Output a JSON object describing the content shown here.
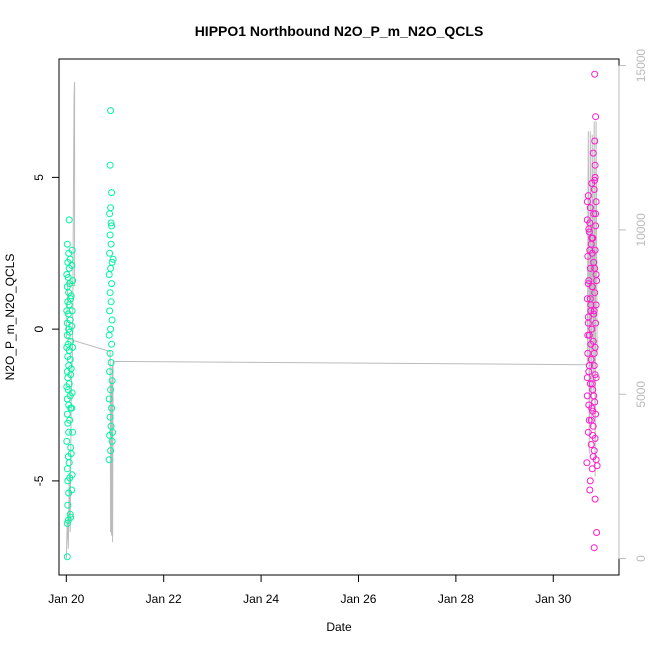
{
  "chart_data": {
    "type": "scatter",
    "title": "HIPPO1 Northbound N2O_P_m_N2O_QCLS",
    "xlabel": "Date",
    "ylabel": "N2O_P_m_N2O_QCLS",
    "xlim": [
      19.85,
      31.35
    ],
    "ylim": [
      -8.1,
      8.9
    ],
    "x_ticks": [
      20,
      22,
      24,
      26,
      28,
      30
    ],
    "x_tick_labels": [
      "Jan 20",
      "Jan 22",
      "Jan 24",
      "Jan 26",
      "Jan 28",
      "Jan 30"
    ],
    "y_ticks": [
      -5,
      0,
      5
    ],
    "y_tick_labels": [
      "-5",
      "0",
      "5"
    ],
    "y2_lim": [
      -500,
      15200
    ],
    "y2_ticks": [
      0,
      5000,
      10000,
      15000
    ],
    "y2_tick_labels": [
      "0",
      "5000",
      "10000",
      "15000"
    ],
    "grid": false,
    "colors": {
      "early_points": "#00f5a0",
      "late_points": "#ff1ad0",
      "altitude_line": "#bbbbbb",
      "axis": "#000000",
      "right_axis": "#bbbbbb"
    },
    "series": [
      {
        "values": [
          [
            20.02,
            -7.5
          ],
          [
            20.02,
            -6.4
          ],
          [
            20.08,
            -6.1
          ],
          [
            20.03,
            -5.8
          ],
          [
            20.09,
            -6.2
          ],
          [
            20.05,
            -5.4
          ],
          [
            20.03,
            -5.0
          ],
          [
            20.07,
            -4.9
          ],
          [
            20.02,
            -4.6
          ],
          [
            20.06,
            -4.4
          ],
          [
            20.04,
            -4.2
          ],
          [
            20.09,
            -3.9
          ],
          [
            20.01,
            -3.7
          ],
          [
            20.05,
            -3.4
          ],
          [
            20.03,
            -3.1
          ],
          [
            20.07,
            -3.0
          ],
          [
            20.02,
            -2.8
          ],
          [
            20.09,
            -2.6
          ],
          [
            20.05,
            -2.5
          ],
          [
            20.02,
            -2.3
          ],
          [
            20.08,
            -2.2
          ],
          [
            20.04,
            -2.0
          ],
          [
            20.01,
            -1.9
          ],
          [
            20.06,
            -1.8
          ],
          [
            20.03,
            -1.6
          ],
          [
            20.09,
            -1.5
          ],
          [
            20.02,
            -1.4
          ],
          [
            20.05,
            -1.2
          ],
          [
            20.08,
            -1.0
          ],
          [
            20.03,
            -0.9
          ],
          [
            20.06,
            -0.7
          ],
          [
            20.01,
            -0.6
          ],
          [
            20.04,
            -0.5
          ],
          [
            20.09,
            -0.4
          ],
          [
            20.02,
            -0.2
          ],
          [
            20.07,
            -0.1
          ],
          [
            20.05,
            0.0
          ],
          [
            20.02,
            0.2
          ],
          [
            20.08,
            0.3
          ],
          [
            20.04,
            0.5
          ],
          [
            20.01,
            0.6
          ],
          [
            20.06,
            0.8
          ],
          [
            20.03,
            0.9
          ],
          [
            20.09,
            1.0
          ],
          [
            20.05,
            1.2
          ],
          [
            20.02,
            1.4
          ],
          [
            20.07,
            1.5
          ],
          [
            20.04,
            1.7
          ],
          [
            20.01,
            1.8
          ],
          [
            20.06,
            2.0
          ],
          [
            20.03,
            2.2
          ],
          [
            20.08,
            2.3
          ],
          [
            20.05,
            2.5
          ],
          [
            20.02,
            2.8
          ],
          [
            20.12,
            2.6
          ],
          [
            20.11,
            2.1
          ],
          [
            20.13,
            1.6
          ],
          [
            20.1,
            1.1
          ],
          [
            20.12,
            0.6
          ],
          [
            20.11,
            0.1
          ],
          [
            20.13,
            -0.6
          ],
          [
            20.1,
            -1.3
          ],
          [
            20.12,
            -2.1
          ],
          [
            20.11,
            -2.6
          ],
          [
            20.13,
            -3.4
          ],
          [
            20.1,
            -4.1
          ],
          [
            20.12,
            -4.8
          ],
          [
            20.11,
            -5.3
          ],
          [
            20.06,
            3.6
          ],
          [
            20.04,
            -6.3
          ],
          [
            20.91,
            7.2
          ],
          [
            20.9,
            5.4
          ],
          [
            20.93,
            4.5
          ],
          [
            20.91,
            4.0
          ],
          [
            20.89,
            3.8
          ],
          [
            20.93,
            3.4
          ],
          [
            20.9,
            3.1
          ],
          [
            20.92,
            2.8
          ],
          [
            20.89,
            2.5
          ],
          [
            20.94,
            2.2
          ],
          [
            20.91,
            2.0
          ],
          [
            20.88,
            1.8
          ],
          [
            20.93,
            1.5
          ],
          [
            20.9,
            1.2
          ],
          [
            20.92,
            0.9
          ],
          [
            20.89,
            0.6
          ],
          [
            20.94,
            0.3
          ],
          [
            20.91,
            0.0
          ],
          [
            20.88,
            -0.2
          ],
          [
            20.93,
            -0.5
          ],
          [
            20.9,
            -0.8
          ],
          [
            20.92,
            -1.1
          ],
          [
            20.89,
            -1.4
          ],
          [
            20.94,
            -1.7
          ],
          [
            20.91,
            -2.0
          ],
          [
            20.88,
            -2.3
          ],
          [
            20.93,
            -2.6
          ],
          [
            20.9,
            -2.9
          ],
          [
            20.92,
            -3.2
          ],
          [
            20.89,
            -3.5
          ],
          [
            20.94,
            -3.7
          ],
          [
            20.91,
            -4.0
          ],
          [
            20.88,
            -4.3
          ],
          [
            20.95,
            -3.4
          ],
          [
            20.92,
            3.5
          ],
          [
            20.96,
            2.3
          ]
        ]
      },
      {
        "values": [
          [
            30.85,
            8.4
          ],
          [
            30.87,
            7.0
          ],
          [
            30.85,
            6.2
          ],
          [
            30.82,
            5.8
          ],
          [
            30.86,
            5.0
          ],
          [
            30.79,
            4.8
          ],
          [
            30.84,
            4.6
          ],
          [
            30.72,
            4.4
          ],
          [
            30.88,
            4.2
          ],
          [
            30.76,
            4.0
          ],
          [
            30.83,
            3.8
          ],
          [
            30.7,
            3.6
          ],
          [
            30.87,
            3.4
          ],
          [
            30.74,
            3.2
          ],
          [
            30.81,
            3.0
          ],
          [
            30.78,
            2.8
          ],
          [
            30.86,
            2.6
          ],
          [
            30.71,
            2.4
          ],
          [
            30.83,
            2.2
          ],
          [
            30.76,
            2.0
          ],
          [
            30.88,
            1.8
          ],
          [
            30.73,
            1.6
          ],
          [
            30.8,
            1.4
          ],
          [
            30.85,
            1.2
          ],
          [
            30.7,
            1.0
          ],
          [
            30.77,
            0.8
          ],
          [
            30.84,
            0.6
          ],
          [
            30.72,
            0.4
          ],
          [
            30.87,
            0.2
          ],
          [
            30.79,
            0.0
          ],
          [
            30.74,
            -0.2
          ],
          [
            30.82,
            -0.4
          ],
          [
            30.86,
            -0.6
          ],
          [
            30.71,
            -0.8
          ],
          [
            30.78,
            -1.0
          ],
          [
            30.84,
            -1.2
          ],
          [
            30.73,
            -1.4
          ],
          [
            30.88,
            -1.6
          ],
          [
            30.76,
            -1.8
          ],
          [
            30.81,
            -2.0
          ],
          [
            30.7,
            -2.2
          ],
          [
            30.85,
            -2.4
          ],
          [
            30.79,
            -2.6
          ],
          [
            30.87,
            -2.8
          ],
          [
            30.74,
            -3.0
          ],
          [
            30.82,
            -3.2
          ],
          [
            30.72,
            -3.4
          ],
          [
            30.86,
            -3.6
          ],
          [
            30.78,
            -3.8
          ],
          [
            30.84,
            -4.0
          ],
          [
            30.88,
            -4.3
          ],
          [
            30.69,
            -4.4
          ],
          [
            30.8,
            -4.6
          ],
          [
            30.9,
            -4.5
          ],
          [
            30.76,
            -5.0
          ],
          [
            30.75,
            -5.3
          ],
          [
            30.86,
            -5.6
          ],
          [
            30.89,
            -6.7
          ],
          [
            30.84,
            -7.2
          ],
          [
            30.75,
            3.5
          ],
          [
            30.8,
            2.5
          ],
          [
            30.72,
            1.5
          ],
          [
            30.83,
            0.5
          ],
          [
            30.77,
            -0.5
          ],
          [
            30.86,
            -1.5
          ],
          [
            30.73,
            -2.5
          ],
          [
            30.81,
            -3.5
          ],
          [
            30.7,
            4.2
          ],
          [
            30.88,
            0.8
          ],
          [
            30.74,
            -1.2
          ],
          [
            30.79,
            3.0
          ],
          [
            30.85,
            2.0
          ],
          [
            30.71,
            -0.2
          ],
          [
            30.83,
            -2.2
          ],
          [
            30.76,
            1.0
          ],
          [
            30.87,
            3.8
          ],
          [
            30.78,
            -3.0
          ],
          [
            30.72,
            0.2
          ],
          [
            30.82,
            -4.2
          ],
          [
            30.86,
            5.4
          ],
          [
            30.8,
            -1.8
          ],
          [
            30.75,
            2.6
          ],
          [
            30.84,
            -0.8
          ],
          [
            30.89,
            1.6
          ],
          [
            30.73,
            3.3
          ],
          [
            30.81,
            -2.7
          ],
          [
            30.77,
            0.6
          ],
          [
            30.85,
            4.9
          ],
          [
            30.7,
            -1.6
          ]
        ]
      }
    ],
    "altitude_line": [
      [
        20.0,
        0
      ],
      [
        20.02,
        1200
      ],
      [
        20.04,
        300
      ],
      [
        20.06,
        2500
      ],
      [
        20.08,
        800
      ],
      [
        20.1,
        5000
      ],
      [
        20.13,
        6500
      ],
      [
        20.15,
        12000
      ],
      [
        20.16,
        14100
      ],
      [
        20.17,
        14500
      ],
      [
        20.17,
        8300
      ],
      [
        20.03,
        8400
      ],
      [
        20.0,
        6700
      ],
      [
        20.9,
        6300
      ],
      [
        20.91,
        800
      ],
      [
        20.92,
        5400
      ],
      [
        20.93,
        700
      ],
      [
        20.94,
        5900
      ],
      [
        20.95,
        500
      ],
      [
        20.96,
        6000
      ],
      [
        30.7,
        5900
      ],
      [
        30.72,
        13000
      ],
      [
        30.74,
        3200
      ],
      [
        30.76,
        13000
      ],
      [
        30.78,
        4000
      ],
      [
        30.8,
        12900
      ],
      [
        30.82,
        5000
      ],
      [
        30.84,
        13300
      ],
      [
        30.86,
        2500
      ],
      [
        30.88,
        13300
      ],
      [
        30.9,
        6200
      ]
    ]
  }
}
